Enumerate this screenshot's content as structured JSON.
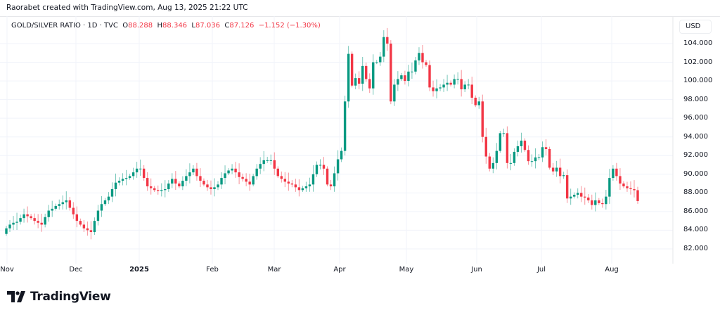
{
  "attribution": "Raorabet created with TradingView.com, Aug 13, 2025 21:22 UTC",
  "legend": {
    "symbol": "GOLD/SILVER RATIO · 1D · TVC",
    "o_label": "O",
    "o": "88.288",
    "h_label": "H",
    "h": "88.346",
    "l_label": "L",
    "l": "87.036",
    "c_label": "C",
    "c": "87.126",
    "change": "−1.152 (−1.30%)"
  },
  "currency": "USD",
  "logo_text": "TradingView",
  "colors": {
    "up": "#089981",
    "down": "#f23645",
    "grid": "#f0f3fa"
  },
  "chart_data": {
    "type": "candlestick",
    "title": "GOLD/SILVER RATIO · 1D · TVC",
    "ylim": [
      80.5,
      106.5
    ],
    "y_ticks": [
      "104.000",
      "102.000",
      "100.000",
      "98.000",
      "96.000",
      "94.000",
      "92.000",
      "90.000",
      "88.000",
      "86.000",
      "84.000",
      "82.000"
    ],
    "x_ticks": [
      "Nov",
      "Dec",
      "2025",
      "Feb",
      "Mar",
      "Apr",
      "May",
      "Jun",
      "Jul",
      "Aug"
    ],
    "first_open": 83.6,
    "closes": [
      84.2,
      84.6,
      84.8,
      84.9,
      85.3,
      85.7,
      85.5,
      85.3,
      85.0,
      84.8,
      84.6,
      85.4,
      86.1,
      86.3,
      86.6,
      86.8,
      87.0,
      87.2,
      86.4,
      85.7,
      85.0,
      84.6,
      84.2,
      84.0,
      83.8,
      85.0,
      86.1,
      86.8,
      87.2,
      87.6,
      88.4,
      89.1,
      89.3,
      89.5,
      89.6,
      89.8,
      90.2,
      90.6,
      90.6,
      89.6,
      88.7,
      88.5,
      88.3,
      88.2,
      88.3,
      88.4,
      89.0,
      89.5,
      89.0,
      88.7,
      89.3,
      89.8,
      90.2,
      90.6,
      89.8,
      89.3,
      88.9,
      88.6,
      88.4,
      88.6,
      88.9,
      89.6,
      90.1,
      90.4,
      90.6,
      90.2,
      89.7,
      89.5,
      89.2,
      88.9,
      89.8,
      90.6,
      91.1,
      91.5,
      91.5,
      91.5,
      90.6,
      89.8,
      89.5,
      89.2,
      89.0,
      88.9,
      88.6,
      88.3,
      88.5,
      88.7,
      88.9,
      90.0,
      91.0,
      91.0,
      90.6,
      88.9,
      88.7,
      90.1,
      91.6,
      92.5,
      97.8,
      102.9,
      99.5,
      100.3,
      99.7,
      101.6,
      100.2,
      99.2,
      102.0,
      102.0,
      102.6,
      104.7,
      104.0,
      97.8,
      99.6,
      100.2,
      100.6,
      100.0,
      101.0,
      101.0,
      102.2,
      103.0,
      102.0,
      101.7,
      99.3,
      98.9,
      99.2,
      99.3,
      99.6,
      99.8,
      99.6,
      100.2,
      100.2,
      99.1,
      99.6,
      99.6,
      98.2,
      97.4,
      97.8,
      94.0,
      91.9,
      90.6,
      91.2,
      92.5,
      94.4,
      94.4,
      91.2,
      91.2,
      92.4,
      93.0,
      93.6,
      92.6,
      91.4,
      91.4,
      91.8,
      91.8,
      92.9,
      92.7,
      90.7,
      90.3,
      90.7,
      89.8,
      89.9,
      87.4,
      87.6,
      87.8,
      88.0,
      87.6,
      87.5,
      87.2,
      86.7,
      87.2,
      86.9,
      86.8,
      87.6,
      89.6,
      90.6,
      89.8,
      89.0,
      88.7,
      88.5,
      88.4,
      88.288,
      87.126
    ]
  }
}
